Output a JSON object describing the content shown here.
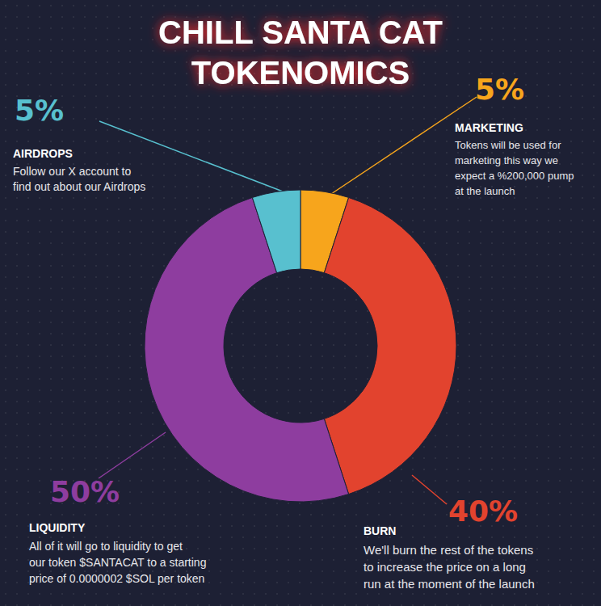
{
  "chart_data": {
    "type": "pie",
    "title": "CHILL SANTA CAT\nTOKENOMICS",
    "categories": [
      "MARKETING",
      "BURN",
      "LIQUIDITY",
      "AIRDROPS"
    ],
    "values": [
      5,
      40,
      50,
      5
    ],
    "value_labels": [
      "5%",
      "40%",
      "50%",
      "5%"
    ],
    "colors": [
      "#f7a51c",
      "#e2432e",
      "#8e3d9f",
      "#58c0cf"
    ],
    "annotations": [
      "Tokens will be used for\nmarketing this way we\nexpect a %200,000 pump\nat the launch",
      "We'll burn the rest of the tokens\nto increase the price on a long\nrun at the moment of the launch",
      "All of it will go to liquidity to get\nour token $SANTACAT to a starting\nprice of 0.0000002 $SOL per token",
      "Follow our X account to\nfind out about our Airdrops"
    ],
    "data_labels": true
  }
}
